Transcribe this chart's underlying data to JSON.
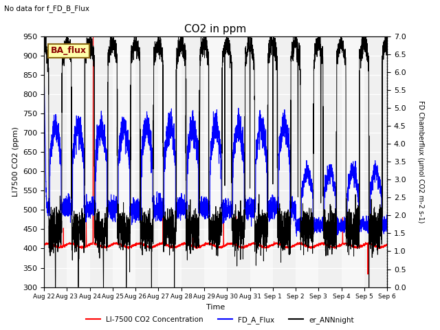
{
  "title": "CO2 in ppm",
  "title_note": "No data for f_FD_B_Flux",
  "ylabel_left": "LI7500 CO2 (ppm)",
  "ylabel_right": "FD Chamberflux (μmol CO2 m-2 s-1)",
  "xlabel": "Time",
  "ylim_left": [
    300,
    950
  ],
  "ylim_right": [
    0.0,
    7.0
  ],
  "legend_labels": [
    "LI-7500 CO2 Concentration",
    "FD_A_Flux",
    "er_ANNnight"
  ],
  "ba_flux_label": "BA_flux",
  "color_red": "#ff0000",
  "color_blue": "#0000ff",
  "color_black": "#000000",
  "color_bg_stripe": "#e0e0e0",
  "x_tick_labels": [
    "Aug 22",
    "Aug 23",
    "Aug 24",
    "Aug 25",
    "Aug 26",
    "Aug 27",
    "Aug 28",
    "Aug 29",
    "Aug 30",
    "Aug 31",
    "Sep 1",
    "Sep 2",
    "Sep 3",
    "Sep 4",
    "Sep 5",
    "Sep 6"
  ],
  "n_days": 15
}
